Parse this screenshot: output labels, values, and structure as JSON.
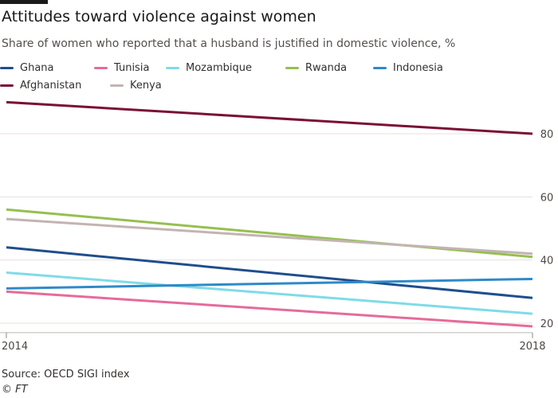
{
  "title": "Attitudes toward violence against women",
  "subtitle": "Share of women who reported that a husband is justified in domestic violence, %",
  "source": "Source: OECD SIGI index",
  "credit": "© FT",
  "chart_data": {
    "type": "line",
    "x": [
      "2014",
      "2018"
    ],
    "xlabel": "",
    "ylabel": "",
    "ylim": [
      17,
      91
    ],
    "yticks": [
      20,
      40,
      60,
      80
    ],
    "grid": true,
    "legend_position": "top-left",
    "series": [
      {
        "name": "Ghana",
        "color": "#1f4e8c",
        "values": [
          44,
          28
        ]
      },
      {
        "name": "Tunisia",
        "color": "#e56b9a",
        "values": [
          30,
          19
        ]
      },
      {
        "name": "Mozambique",
        "color": "#7fdbe8",
        "values": [
          36,
          23
        ]
      },
      {
        "name": "Rwanda",
        "color": "#96bf50",
        "values": [
          56,
          41
        ]
      },
      {
        "name": "Indonesia",
        "color": "#2e8ac8",
        "values": [
          31,
          34
        ]
      },
      {
        "name": "Afghanistan",
        "color": "#7a1035",
        "values": [
          90,
          80
        ]
      },
      {
        "name": "Kenya",
        "color": "#c2b4b2",
        "values": [
          53,
          42
        ]
      }
    ]
  }
}
